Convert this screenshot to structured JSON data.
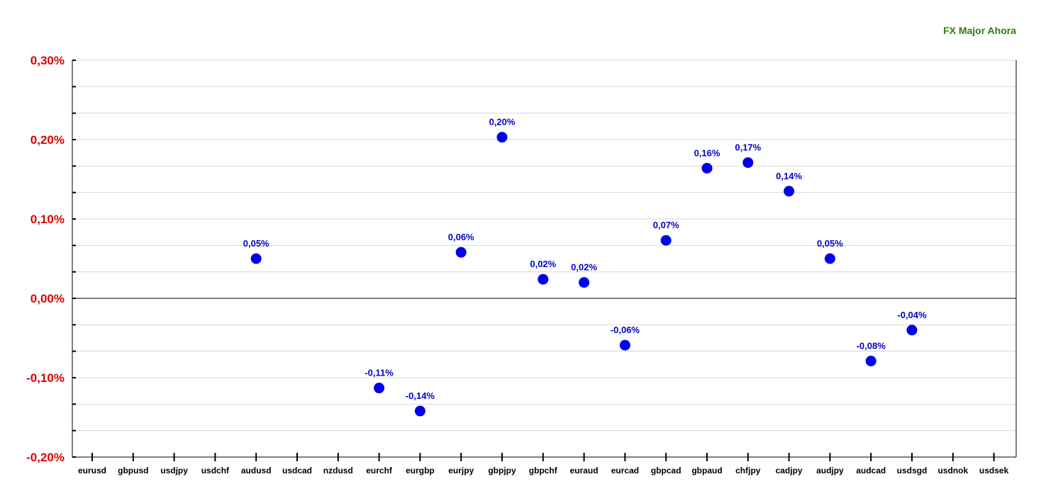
{
  "chart_data": {
    "type": "scatter",
    "title": "FX Major Ahora",
    "categories": [
      "eurusd",
      "gbpusd",
      "usdjpy",
      "usdchf",
      "audusd",
      "usdcad",
      "nzdusd",
      "eurchf",
      "eurgbp",
      "eurjpy",
      "gbpjpy",
      "gbpchf",
      "euraud",
      "eurcad",
      "gbpcad",
      "gbpaud",
      "chfjpy",
      "cadjpy",
      "audjpy",
      "audcad",
      "usdsgd",
      "usdnok",
      "usdsek"
    ],
    "values": [
      null,
      null,
      null,
      null,
      0.05,
      null,
      null,
      -0.113,
      -0.142,
      0.058,
      0.203,
      0.024,
      0.02,
      -0.059,
      0.073,
      0.164,
      0.171,
      0.135,
      0.05,
      -0.079,
      -0.04,
      null,
      null
    ],
    "labels": [
      "",
      "",
      "",
      "",
      "0,05%",
      "",
      "",
      "-0,11%",
      "-0,14%",
      "0,06%",
      "0,20%",
      "0,02%",
      "0,02%",
      "-0,06%",
      "0,07%",
      "0,16%",
      "0,17%",
      "0,14%",
      "0,05%",
      "-0,08%",
      "-0,04%",
      "",
      ""
    ],
    "yticks": [
      0.3,
      0.2,
      0.1,
      0.0,
      -0.1,
      -0.2
    ],
    "ytick_labels": [
      "0,30%",
      "0,20%",
      "0,10%",
      "0,00%",
      "-0,10%",
      "-0,20%"
    ],
    "ylim": [
      -0.2,
      0.3
    ],
    "grid": true,
    "colors": {
      "title": "#2e7d12",
      "ytick": "#e00000",
      "point": "#0000ee",
      "label": "#0000cc",
      "grid": "#d8d8d8",
      "axis": "#000000"
    }
  }
}
